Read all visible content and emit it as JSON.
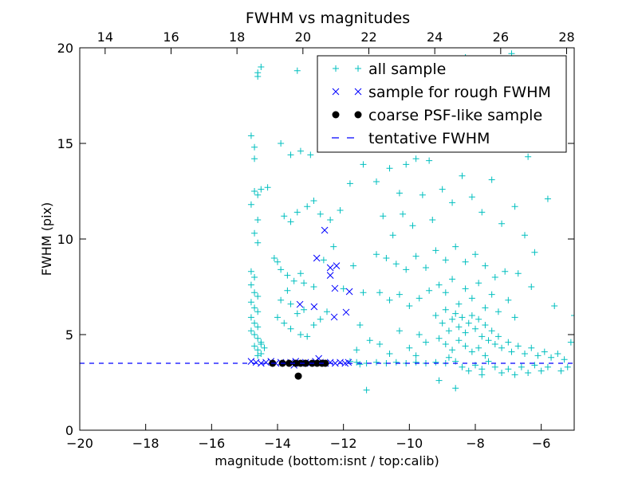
{
  "chart_data": {
    "type": "scatter",
    "title": "FWHM vs magnitudes",
    "xlabel": "magnitude (bottom:isnt / top:calib)",
    "ylabel": "FWHM (pix)",
    "xlim": [
      -20,
      -5
    ],
    "ylim": [
      0,
      20
    ],
    "top_xlim": [
      13.23,
      28.23
    ],
    "xticks": [
      -20,
      -18,
      -16,
      -14,
      -12,
      -10,
      -8,
      -6
    ],
    "xtick_labels": [
      "−20",
      "−18",
      "−16",
      "−14",
      "−12",
      "−10",
      "−8",
      "−6"
    ],
    "yticks": [
      0,
      5,
      10,
      15,
      20
    ],
    "ytick_labels": [
      "0",
      "5",
      "10",
      "15",
      "20"
    ],
    "top_xticks": [
      14,
      16,
      18,
      20,
      22,
      24,
      26,
      28
    ],
    "top_xtick_labels": [
      "14",
      "16",
      "18",
      "20",
      "22",
      "24",
      "26",
      "28"
    ],
    "legend_position": "top-right",
    "grid": false,
    "tentative_fwhm": 3.5,
    "series": [
      {
        "name": "all sample",
        "marker": "+",
        "color": "#00bfbf",
        "points": [
          [
            -14.8,
            15.4
          ],
          [
            -14.7,
            14.2
          ],
          [
            -14.7,
            14.8
          ],
          [
            -14.6,
            18.5
          ],
          [
            -14.6,
            18.7
          ],
          [
            -14.5,
            19.0
          ],
          [
            -14.7,
            12.5
          ],
          [
            -14.6,
            12.3
          ],
          [
            -14.5,
            12.6
          ],
          [
            -14.8,
            11.8
          ],
          [
            -14.6,
            11.0
          ],
          [
            -14.7,
            10.3
          ],
          [
            -14.6,
            9.8
          ],
          [
            -14.8,
            8.3
          ],
          [
            -14.7,
            8.0
          ],
          [
            -14.8,
            7.6
          ],
          [
            -14.7,
            7.2
          ],
          [
            -14.6,
            7.0
          ],
          [
            -14.8,
            6.7
          ],
          [
            -14.7,
            6.4
          ],
          [
            -14.6,
            6.2
          ],
          [
            -14.8,
            5.9
          ],
          [
            -14.7,
            5.6
          ],
          [
            -14.6,
            5.4
          ],
          [
            -14.8,
            5.2
          ],
          [
            -14.7,
            5.0
          ],
          [
            -14.6,
            4.8
          ],
          [
            -14.5,
            4.6
          ],
          [
            -14.7,
            4.4
          ],
          [
            -14.6,
            4.2
          ],
          [
            -14.5,
            4.5
          ],
          [
            -14.4,
            4.3
          ],
          [
            -14.6,
            3.9
          ],
          [
            -14.5,
            4.0
          ],
          [
            -14.3,
            12.7
          ],
          [
            -13.9,
            15.0
          ],
          [
            -13.6,
            14.4
          ],
          [
            -13.3,
            14.6
          ],
          [
            -13.4,
            18.8
          ],
          [
            -13.0,
            14.4
          ],
          [
            -13.8,
            11.2
          ],
          [
            -13.6,
            10.9
          ],
          [
            -13.4,
            11.4
          ],
          [
            -13.1,
            11.7
          ],
          [
            -12.9,
            12.0
          ],
          [
            -12.7,
            11.3
          ],
          [
            -12.4,
            11.0
          ],
          [
            -12.1,
            11.5
          ],
          [
            -11.8,
            12.9
          ],
          [
            -14.1,
            9.0
          ],
          [
            -14.0,
            8.8
          ],
          [
            -13.9,
            8.4
          ],
          [
            -13.7,
            8.1
          ],
          [
            -13.5,
            7.8
          ],
          [
            -13.3,
            8.2
          ],
          [
            -13.2,
            7.7
          ],
          [
            -12.9,
            7.5
          ],
          [
            -13.7,
            7.3
          ],
          [
            -13.9,
            6.8
          ],
          [
            -13.6,
            6.6
          ],
          [
            -13.4,
            6.1
          ],
          [
            -13.2,
            6.3
          ],
          [
            -14.0,
            5.9
          ],
          [
            -13.8,
            5.6
          ],
          [
            -13.6,
            5.3
          ],
          [
            -13.3,
            5.0
          ],
          [
            -13.1,
            4.9
          ],
          [
            -12.9,
            5.5
          ],
          [
            -12.7,
            5.8
          ],
          [
            -12.5,
            6.2
          ],
          [
            -12.6,
            8.9
          ],
          [
            -12.3,
            9.6
          ],
          [
            -12.0,
            7.4
          ],
          [
            -11.7,
            8.6
          ],
          [
            -11.4,
            7.2
          ],
          [
            -11.5,
            5.5
          ],
          [
            -11.2,
            4.7
          ],
          [
            -11.6,
            4.2
          ],
          [
            -11.4,
            13.9
          ],
          [
            -11.0,
            13.0
          ],
          [
            -10.6,
            13.7
          ],
          [
            -10.3,
            12.4
          ],
          [
            -10.1,
            13.9
          ],
          [
            -9.8,
            14.2
          ],
          [
            -9.4,
            14.1
          ],
          [
            -9.1,
            16.2
          ],
          [
            -8.9,
            17.3
          ],
          [
            -8.6,
            18.4
          ],
          [
            -8.3,
            19.5
          ],
          [
            -8.0,
            18.8
          ],
          [
            -7.6,
            17.4
          ],
          [
            -7.3,
            16.0
          ],
          [
            -6.9,
            19.7
          ],
          [
            -6.4,
            14.3
          ],
          [
            -5.8,
            12.1
          ],
          [
            -10.8,
            11.2
          ],
          [
            -10.5,
            10.2
          ],
          [
            -10.2,
            11.3
          ],
          [
            -9.9,
            10.7
          ],
          [
            -9.6,
            12.3
          ],
          [
            -9.3,
            11.0
          ],
          [
            -9.0,
            12.6
          ],
          [
            -8.7,
            11.9
          ],
          [
            -8.4,
            13.3
          ],
          [
            -8.1,
            12.2
          ],
          [
            -7.8,
            11.4
          ],
          [
            -7.5,
            13.1
          ],
          [
            -7.2,
            10.8
          ],
          [
            -6.8,
            11.7
          ],
          [
            -6.5,
            10.2
          ],
          [
            -6.2,
            9.3
          ],
          [
            -11.0,
            9.2
          ],
          [
            -10.7,
            9.0
          ],
          [
            -10.4,
            8.7
          ],
          [
            -10.1,
            8.4
          ],
          [
            -9.8,
            9.1
          ],
          [
            -9.5,
            8.5
          ],
          [
            -9.2,
            9.4
          ],
          [
            -8.9,
            8.9
          ],
          [
            -8.6,
            9.6
          ],
          [
            -8.3,
            8.8
          ],
          [
            -8.0,
            9.2
          ],
          [
            -7.7,
            8.6
          ],
          [
            -7.4,
            8.0
          ],
          [
            -7.1,
            8.3
          ],
          [
            -6.7,
            8.2
          ],
          [
            -6.3,
            7.5
          ],
          [
            -10.9,
            7.2
          ],
          [
            -10.6,
            6.8
          ],
          [
            -10.3,
            7.1
          ],
          [
            -10.0,
            6.5
          ],
          [
            -9.7,
            6.9
          ],
          [
            -9.4,
            7.3
          ],
          [
            -9.1,
            7.6
          ],
          [
            -8.9,
            7.2
          ],
          [
            -8.7,
            7.9
          ],
          [
            -8.5,
            6.6
          ],
          [
            -8.3,
            7.4
          ],
          [
            -8.1,
            6.9
          ],
          [
            -7.9,
            7.7
          ],
          [
            -7.7,
            6.4
          ],
          [
            -7.5,
            7.1
          ],
          [
            -7.3,
            6.2
          ],
          [
            -7.0,
            6.8
          ],
          [
            -6.8,
            5.9
          ],
          [
            -9.2,
            6.0
          ],
          [
            -9.0,
            5.6
          ],
          [
            -8.9,
            6.3
          ],
          [
            -8.8,
            5.2
          ],
          [
            -8.7,
            5.8
          ],
          [
            -8.6,
            6.1
          ],
          [
            -8.5,
            5.4
          ],
          [
            -8.4,
            5.9
          ],
          [
            -8.3,
            5.1
          ],
          [
            -8.2,
            5.6
          ],
          [
            -8.1,
            6.0
          ],
          [
            -8.0,
            5.3
          ],
          [
            -7.9,
            5.8
          ],
          [
            -7.8,
            4.9
          ],
          [
            -7.7,
            5.5
          ],
          [
            -7.6,
            4.7
          ],
          [
            -7.5,
            5.2
          ],
          [
            -7.4,
            4.5
          ],
          [
            -7.3,
            4.9
          ],
          [
            -7.2,
            4.3
          ],
          [
            -7.0,
            4.6
          ],
          [
            -6.9,
            4.1
          ],
          [
            -6.7,
            4.4
          ],
          [
            -6.5,
            4.0
          ],
          [
            -6.3,
            4.3
          ],
          [
            -6.1,
            3.9
          ],
          [
            -5.9,
            4.1
          ],
          [
            -5.7,
            3.8
          ],
          [
            -5.5,
            4.0
          ],
          [
            -5.3,
            3.7
          ],
          [
            -5.1,
            4.6
          ],
          [
            -5.0,
            6.0
          ],
          [
            -5.6,
            6.5
          ],
          [
            -9.1,
            4.8
          ],
          [
            -8.9,
            4.5
          ],
          [
            -8.7,
            4.2
          ],
          [
            -8.5,
            4.7
          ],
          [
            -8.3,
            4.4
          ],
          [
            -8.1,
            4.1
          ],
          [
            -7.9,
            4.3
          ],
          [
            -7.7,
            3.9
          ],
          [
            -8.8,
            3.8
          ],
          [
            -8.6,
            3.6
          ],
          [
            -8.4,
            3.3
          ],
          [
            -8.2,
            3.1
          ],
          [
            -8.0,
            3.4
          ],
          [
            -7.8,
            3.2
          ],
          [
            -7.6,
            3.6
          ],
          [
            -7.4,
            3.3
          ],
          [
            -7.2,
            3.0
          ],
          [
            -7.0,
            3.2
          ],
          [
            -6.8,
            2.9
          ],
          [
            -6.6,
            3.3
          ],
          [
            -6.4,
            3.0
          ],
          [
            -6.2,
            3.4
          ],
          [
            -6.0,
            3.1
          ],
          [
            -5.8,
            3.3
          ],
          [
            -5.4,
            3.1
          ],
          [
            -5.2,
            3.3
          ],
          [
            -8.6,
            2.2
          ],
          [
            -9.1,
            2.6
          ],
          [
            -7.8,
            2.9
          ],
          [
            -10.9,
            4.5
          ],
          [
            -10.6,
            4.0
          ],
          [
            -10.3,
            5.2
          ],
          [
            -10.0,
            4.3
          ],
          [
            -9.7,
            5.0
          ],
          [
            -9.5,
            4.6
          ],
          [
            -9.8,
            3.9
          ],
          [
            -11.3,
            2.1
          ],
          [
            -11.6,
            3.55
          ],
          [
            -11.3,
            3.5
          ],
          [
            -11.0,
            3.55
          ],
          [
            -10.7,
            3.5
          ],
          [
            -10.4,
            3.55
          ],
          [
            -10.1,
            3.5
          ],
          [
            -9.8,
            3.55
          ],
          [
            -9.5,
            3.5
          ],
          [
            -9.2,
            3.55
          ],
          [
            -8.9,
            3.5
          ],
          [
            -11.8,
            3.6
          ],
          [
            -11.5,
            3.45
          ]
        ]
      },
      {
        "name": "sample for rough FWHM",
        "marker": "x",
        "color": "#0000ff",
        "points": [
          [
            -12.57,
            10.46
          ],
          [
            -12.81,
            9.0
          ],
          [
            -12.4,
            8.5
          ],
          [
            -12.21,
            8.6
          ],
          [
            -12.4,
            8.1
          ],
          [
            -12.26,
            7.42
          ],
          [
            -11.82,
            7.25
          ],
          [
            -13.32,
            6.58
          ],
          [
            -12.89,
            6.46
          ],
          [
            -11.92,
            6.17
          ],
          [
            -12.28,
            5.92
          ],
          [
            -14.8,
            3.6
          ],
          [
            -14.65,
            3.55
          ],
          [
            -14.5,
            3.5
          ],
          [
            -14.35,
            3.55
          ],
          [
            -14.2,
            3.6
          ],
          [
            -14.05,
            3.5
          ],
          [
            -13.9,
            3.55
          ],
          [
            -13.75,
            3.5
          ],
          [
            -13.6,
            3.55
          ],
          [
            -13.45,
            3.6
          ],
          [
            -13.3,
            3.5
          ],
          [
            -13.15,
            3.55
          ],
          [
            -13.0,
            3.5
          ],
          [
            -12.85,
            3.6
          ],
          [
            -12.7,
            3.55
          ],
          [
            -12.55,
            3.5
          ],
          [
            -12.4,
            3.55
          ],
          [
            -12.25,
            3.5
          ],
          [
            -12.1,
            3.55
          ],
          [
            -11.95,
            3.5
          ],
          [
            -11.85,
            3.55
          ],
          [
            -12.75,
            3.75
          ],
          [
            -13.5,
            3.4
          ]
        ]
      },
      {
        "name": "coarse PSF-like sample",
        "marker": "o",
        "color": "#000000",
        "points": [
          [
            -14.15,
            3.5
          ],
          [
            -13.85,
            3.5
          ],
          [
            -13.65,
            3.5
          ],
          [
            -13.45,
            3.5
          ],
          [
            -13.3,
            3.5
          ],
          [
            -13.15,
            3.5
          ],
          [
            -12.95,
            3.5
          ],
          [
            -12.8,
            3.5
          ],
          [
            -12.65,
            3.5
          ],
          [
            -12.55,
            3.5
          ],
          [
            -13.37,
            2.83
          ]
        ]
      }
    ],
    "legend": [
      "all sample",
      "sample for rough FWHM",
      "coarse PSF-like sample",
      "tentative FWHM"
    ]
  }
}
